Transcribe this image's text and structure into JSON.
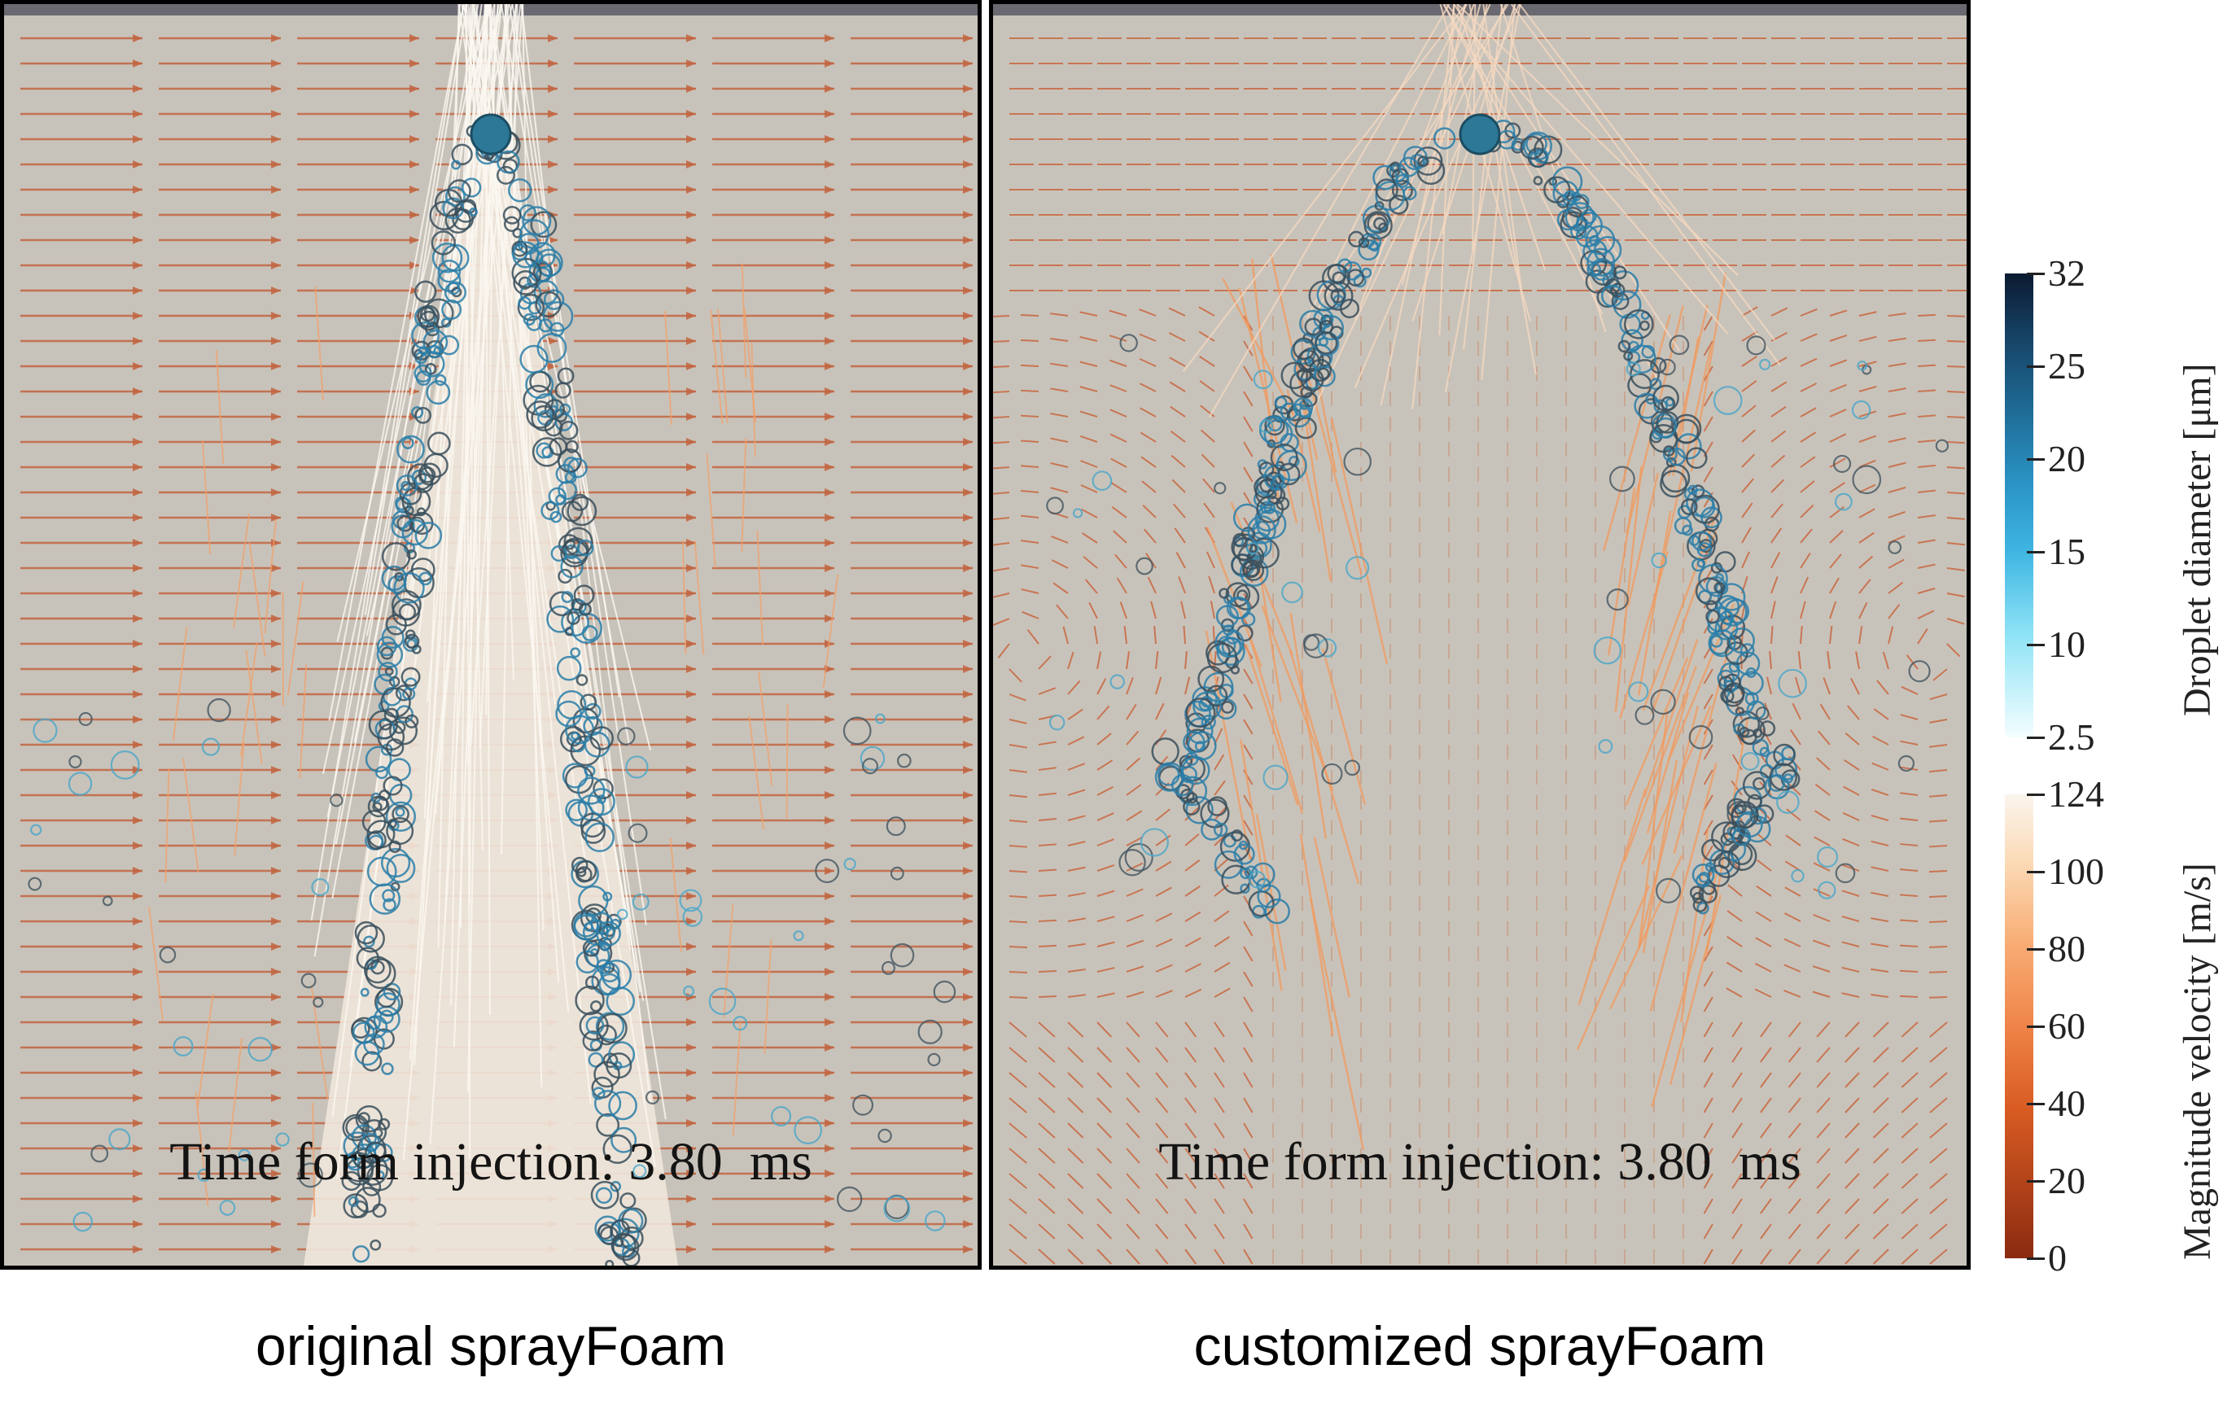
{
  "panels": [
    {
      "time_label": "Time form injection: 3.80  ms",
      "caption": "original sprayFoam"
    },
    {
      "time_label": "Time form injection: 3.80  ms",
      "caption": "customized sprayFoam"
    }
  ],
  "colorbars": {
    "diameter": {
      "title": "Droplet diameter [μm]",
      "ticks": [
        "32",
        "25",
        "20",
        "15",
        "10",
        "2.5"
      ],
      "colors": [
        "#0b1a30",
        "#1f6d97",
        "#3fb6e2",
        "#f4feff"
      ]
    },
    "velocity": {
      "title": "Magnitude velocity [m/s]",
      "ticks": [
        "124",
        "100",
        "80",
        "60",
        "40",
        "20",
        "0"
      ],
      "colors": [
        "#fbf5ee",
        "#f8ad75",
        "#d85b22",
        "#8a2a10"
      ]
    }
  },
  "colors": {
    "background": "#c8c3ba",
    "arrow": "#c8623a",
    "droplet": "#2a7ea8",
    "jet_core": "#f3ece2"
  }
}
